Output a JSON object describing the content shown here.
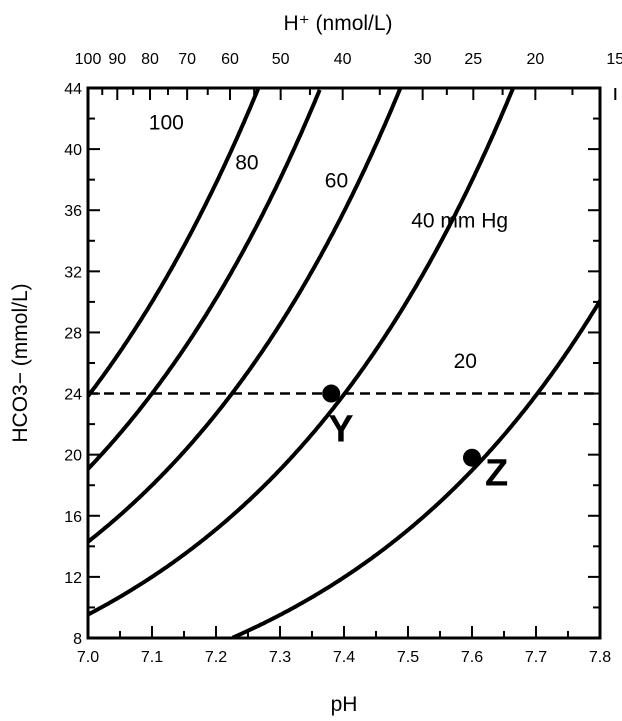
{
  "chart_data": {
    "type": "line",
    "title": "",
    "xlabel": "pH",
    "ylabel": "HCO3− (mmol/L)",
    "top_axis_label": "H⁺ (nmol/L)",
    "xlim": [
      7.0,
      7.8
    ],
    "ylim": [
      8,
      44
    ],
    "x_ticks": [
      "7.0",
      "7.1",
      "7.2",
      "7.3",
      "7.4",
      "7.5",
      "7.6",
      "7.7",
      "7.8"
    ],
    "y_ticks": [
      "8",
      "12",
      "16",
      "20",
      "24",
      "28",
      "32",
      "36",
      "40",
      "44"
    ],
    "top_ticks": [
      "100",
      "90",
      "80",
      "70",
      "60",
      "50",
      "40",
      "30",
      "25",
      "20",
      "15"
    ],
    "grid": false,
    "series": [
      {
        "name": "100",
        "pco2": 100
      },
      {
        "name": "80",
        "pco2": 80
      },
      {
        "name": "60",
        "pco2": 60
      },
      {
        "name": "40 mm Hg",
        "pco2": 40
      },
      {
        "name": "20",
        "pco2": 20
      }
    ],
    "reference_line": {
      "y": 24,
      "style": "dashed"
    },
    "points": [
      {
        "label": "Y",
        "x": 7.38,
        "y": 24
      },
      {
        "label": "Z",
        "x": 7.6,
        "y": 19.8
      }
    ]
  }
}
